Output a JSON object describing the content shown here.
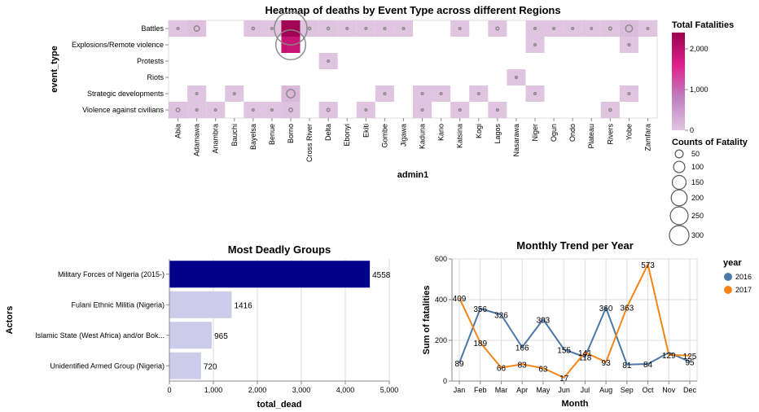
{
  "chart_data": [
    {
      "type": "heatmap",
      "title": "Heatmap of deaths by Event Type across different Regions",
      "xlabel": "admin1",
      "ylabel": "event_type",
      "x": [
        "Abia",
        "Adamawa",
        "Anambra",
        "Bauchi",
        "Bayelsa",
        "Benue",
        "Borno",
        "Cross River",
        "Delta",
        "Ebonyi",
        "Ekiti",
        "Gombe",
        "Jigawa",
        "Kaduna",
        "Kano",
        "Katsina",
        "Kogi",
        "Lagos",
        "Nasarawa",
        "Niger",
        "Ogun",
        "Ondo",
        "Plateau",
        "Rivers",
        "Yobe",
        "Zamfara"
      ],
      "y": [
        "Battles",
        "Explosions/Remote violence",
        "Protests",
        "Riots",
        "Strategic developments",
        "Violence against civilians"
      ],
      "cells": [
        {
          "x": "Abia",
          "y": "Battles",
          "fatalities": 5
        },
        {
          "x": "Adamawa",
          "y": "Battles",
          "fatalities": 60
        },
        {
          "x": "Bayelsa",
          "y": "Battles",
          "fatalities": 15
        },
        {
          "x": "Benue",
          "y": "Battles",
          "fatalities": 10
        },
        {
          "x": "Borno",
          "y": "Battles",
          "fatalities": 2300
        },
        {
          "x": "Cross River",
          "y": "Battles",
          "fatalities": 15
        },
        {
          "x": "Delta",
          "y": "Battles",
          "fatalities": 15
        },
        {
          "x": "Ebonyi",
          "y": "Battles",
          "fatalities": 3
        },
        {
          "x": "Ekiti",
          "y": "Battles",
          "fatalities": 3
        },
        {
          "x": "Gombe",
          "y": "Battles",
          "fatalities": 3
        },
        {
          "x": "Jigawa",
          "y": "Battles",
          "fatalities": 3
        },
        {
          "x": "Katsina",
          "y": "Battles",
          "fatalities": 3
        },
        {
          "x": "Lagos",
          "y": "Battles",
          "fatalities": 20
        },
        {
          "x": "Niger",
          "y": "Battles",
          "fatalities": 3
        },
        {
          "x": "Ogun",
          "y": "Battles",
          "fatalities": 5
        },
        {
          "x": "Ondo",
          "y": "Battles",
          "fatalities": 3
        },
        {
          "x": "Plateau",
          "y": "Battles",
          "fatalities": 5
        },
        {
          "x": "Rivers",
          "y": "Battles",
          "fatalities": 20
        },
        {
          "x": "Yobe",
          "y": "Battles",
          "fatalities": 100
        },
        {
          "x": "Zamfara",
          "y": "Battles",
          "fatalities": 5
        },
        {
          "x": "Borno",
          "y": "Explosions/Remote violence",
          "fatalities": 1900
        },
        {
          "x": "Niger",
          "y": "Explosions/Remote violence",
          "fatalities": 3
        },
        {
          "x": "Yobe",
          "y": "Explosions/Remote violence",
          "fatalities": 10
        },
        {
          "x": "Delta",
          "y": "Protests",
          "fatalities": 3
        },
        {
          "x": "Nasarawa",
          "y": "Riots",
          "fatalities": 3
        },
        {
          "x": "Adamawa",
          "y": "Strategic developments",
          "fatalities": 3
        },
        {
          "x": "Bauchi",
          "y": "Strategic developments",
          "fatalities": 5
        },
        {
          "x": "Borno",
          "y": "Strategic developments",
          "fatalities": 150
        },
        {
          "x": "Gombe",
          "y": "Strategic developments",
          "fatalities": 5
        },
        {
          "x": "Kaduna",
          "y": "Strategic developments",
          "fatalities": 5
        },
        {
          "x": "Kano",
          "y": "Strategic developments",
          "fatalities": 5
        },
        {
          "x": "Kogi",
          "y": "Strategic developments",
          "fatalities": 5
        },
        {
          "x": "Niger",
          "y": "Strategic developments",
          "fatalities": 3
        },
        {
          "x": "Yobe",
          "y": "Strategic developments",
          "fatalities": 10
        },
        {
          "x": "Abia",
          "y": "Violence against civilians",
          "fatalities": 30
        },
        {
          "x": "Adamawa",
          "y": "Violence against civilians",
          "fatalities": 10
        },
        {
          "x": "Anambra",
          "y": "Violence against civilians",
          "fatalities": 5
        },
        {
          "x": "Bayelsa",
          "y": "Violence against civilians",
          "fatalities": 10
        },
        {
          "x": "Benue",
          "y": "Violence against civilians",
          "fatalities": 10
        },
        {
          "x": "Borno",
          "y": "Violence against civilians",
          "fatalities": 30
        },
        {
          "x": "Delta",
          "y": "Violence against civilians",
          "fatalities": 20
        },
        {
          "x": "Ekiti",
          "y": "Violence against civilians",
          "fatalities": 3
        },
        {
          "x": "Kaduna",
          "y": "Violence against civilians",
          "fatalities": 10
        },
        {
          "x": "Katsina",
          "y": "Violence against civilians",
          "fatalities": 10
        },
        {
          "x": "Lagos",
          "y": "Violence against civilians",
          "fatalities": 3
        },
        {
          "x": "Rivers",
          "y": "Violence against civilians",
          "fatalities": 15
        }
      ],
      "color_legend": {
        "title": "Total Fatalities",
        "domain": [
          0,
          2400
        ],
        "ticks": [
          0,
          1000,
          2000
        ],
        "tick_labels": [
          "0",
          "1,000",
          "2,000"
        ],
        "colors": [
          "#e0c5e0",
          "#c080c0",
          "#e0208c",
          "#99004d"
        ]
      },
      "size_legend": {
        "title": "Counts of Fatality",
        "values": [
          50,
          100,
          150,
          200,
          250,
          300
        ],
        "labels": [
          "50",
          "100",
          "150",
          "200",
          "250",
          "300"
        ]
      },
      "grid": false
    },
    {
      "type": "bar",
      "orientation": "horizontal",
      "title": "Most Deadly Groups",
      "xlabel": "total_dead",
      "ylabel": "Actors",
      "categories": [
        "Military Forces of Nigeria (2015-)",
        "Fulani Ethnic Militia (Nigeria)",
        "Islamic State (West Africa) and/or Bok...",
        "Unidentified Armed Group (Nigeria)"
      ],
      "values": [
        4558,
        1416,
        965,
        720
      ],
      "value_labels": [
        "4558",
        "1416",
        "965",
        "720"
      ],
      "xlim": [
        0,
        5000
      ],
      "x_ticks": [
        0,
        1000,
        2000,
        3000,
        4000,
        5000
      ],
      "x_tick_labels": [
        "0",
        "1,000",
        "2,000",
        "3,000",
        "4,000",
        "5,000"
      ],
      "highlight_color": "#00008b",
      "base_color": "#ccccea",
      "grid": true
    },
    {
      "type": "line",
      "title": "Monthly Trend per Year",
      "xlabel": "Month",
      "ylabel": "Sum of fatalities",
      "categories": [
        "Jan",
        "Feb",
        "Mar",
        "Apr",
        "May",
        "Jun",
        "Jul",
        "Aug",
        "Sep",
        "Oct",
        "Nov",
        "Dec"
      ],
      "ylim": [
        0,
        600
      ],
      "y_ticks": [
        0,
        200,
        400,
        600
      ],
      "legend_title": "year",
      "legend_position": "right",
      "series": [
        {
          "name": "2016",
          "color": "#4c78a8",
          "values": [
            89,
            356,
            326,
            166,
            303,
            155,
            118,
            360,
            81,
            84,
            140,
            95
          ],
          "labels": [
            "89",
            "356",
            "326",
            "166",
            "303",
            "155",
            "118",
            "360",
            "81",
            "84",
            "",
            "95"
          ]
        },
        {
          "name": "2017",
          "color": "#f58518",
          "values": [
            409,
            189,
            66,
            83,
            63,
            17,
            141,
            93,
            363,
            573,
            129,
            125
          ],
          "labels": [
            "409",
            "189",
            "66",
            "83",
            "63",
            "17",
            "141",
            "93",
            "363",
            "573",
            "129",
            "125"
          ]
        }
      ],
      "grid": true
    }
  ]
}
